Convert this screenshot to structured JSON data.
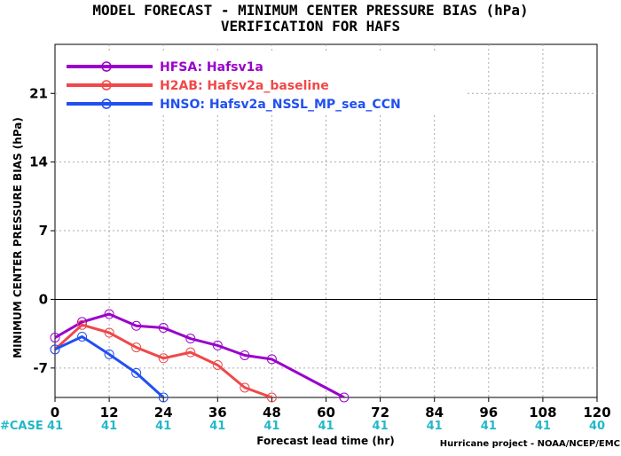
{
  "chart_data": {
    "type": "line",
    "title": "MODEL FORECAST - MINIMUM CENTER PRESSURE BIAS (hPa)",
    "subtitle": "VERIFICATION FOR HAFS",
    "xlabel": "Forecast lead time (hr)",
    "ylabel": "MINIMUM CENTER PRESSURE BIAS (hPa)",
    "xlim": [
      0,
      120
    ],
    "ylim": [
      -10,
      26
    ],
    "x_ticks": [
      "0",
      "12",
      "24",
      "36",
      "48",
      "60",
      "72",
      "84",
      "96",
      "108",
      "120"
    ],
    "y_ticks": [
      "-7",
      "0",
      "7",
      "14",
      "21"
    ],
    "grid": true,
    "legend_position": "top-left",
    "cases_label": "#CASE",
    "cases": [
      "41",
      "41",
      "41",
      "41",
      "41",
      "41",
      "41",
      "41",
      "41",
      "41",
      "40"
    ],
    "credit": "Hurricane project - NOAA/NCEP/EMC",
    "series": [
      {
        "name": "HFSA:  Hafsv1a",
        "color": "#9a00cc",
        "x": [
          0,
          6,
          12,
          18,
          24,
          30,
          36,
          42,
          48,
          64
        ],
        "y": [
          -3.9,
          -2.3,
          -1.5,
          -2.7,
          -2.9,
          -4.0,
          -4.7,
          -5.7,
          -6.1,
          -10.0
        ]
      },
      {
        "name": "H2AB:  Hafsv2a_baseline",
        "color": "#f04848",
        "x": [
          0,
          6,
          12,
          18,
          24,
          30,
          36,
          42,
          48
        ],
        "y": [
          -5.1,
          -2.6,
          -3.4,
          -4.9,
          -6.0,
          -5.4,
          -6.7,
          -9.0,
          -10.0
        ]
      },
      {
        "name": "HNSO:  Hafsv2a_NSSL_MP_sea_CCN",
        "color": "#2050f0",
        "x": [
          0,
          6,
          12,
          18,
          24
        ],
        "y": [
          -5.1,
          -3.8,
          -5.6,
          -7.5,
          -10.0
        ]
      }
    ]
  }
}
